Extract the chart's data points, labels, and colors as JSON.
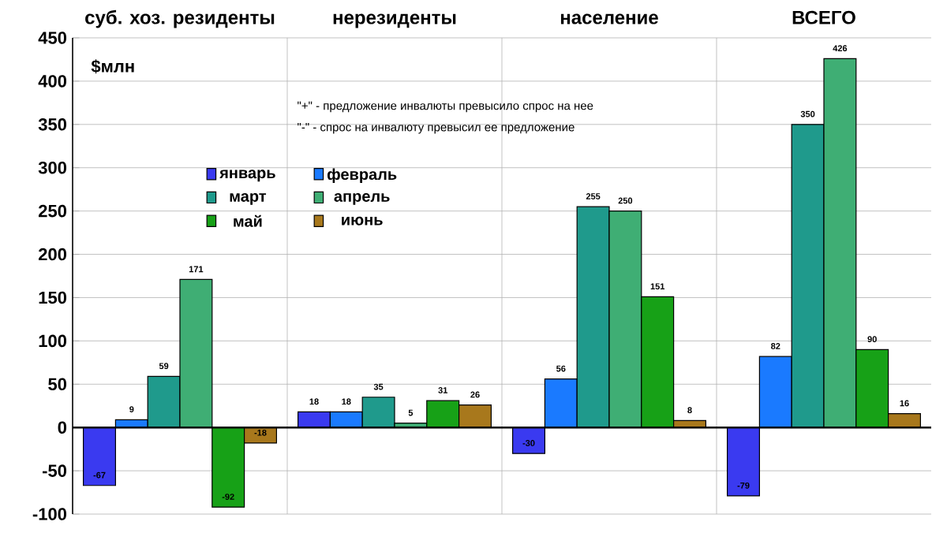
{
  "chart_data": {
    "type": "bar",
    "categories": [
      "суб. хоз. резиденты",
      "нерезиденты",
      "население",
      "ВСЕГО"
    ],
    "series": [
      {
        "name": "январь",
        "color": "#3a3af0",
        "values": [
          -67,
          18,
          -30,
          -79
        ]
      },
      {
        "name": "февраль",
        "color": "#1a7aff",
        "values": [
          9,
          18,
          56,
          82
        ]
      },
      {
        "name": "март",
        "color": "#1f9a8c",
        "values": [
          59,
          35,
          255,
          350
        ]
      },
      {
        "name": "апрель",
        "color": "#3fae74",
        "values": [
          171,
          5,
          250,
          426
        ]
      },
      {
        "name": "май",
        "color": "#17a117",
        "values": [
          -92,
          31,
          151,
          90
        ]
      },
      {
        "name": "июнь",
        "color": "#a8781c",
        "values": [
          -18,
          26,
          8,
          16
        ]
      }
    ],
    "ylim": [
      -100,
      450
    ],
    "yticks": [
      -100,
      -50,
      0,
      50,
      100,
      150,
      200,
      250,
      300,
      350,
      400,
      450
    ],
    "grid": true,
    "legend": "top left",
    "data_labels": true,
    "annotations": [
      "$млн",
      "\"+\" - предложение инвалюты превысило спрос на нее",
      "\"-\" - спрос на инвалюту превысил ее предложение"
    ]
  }
}
